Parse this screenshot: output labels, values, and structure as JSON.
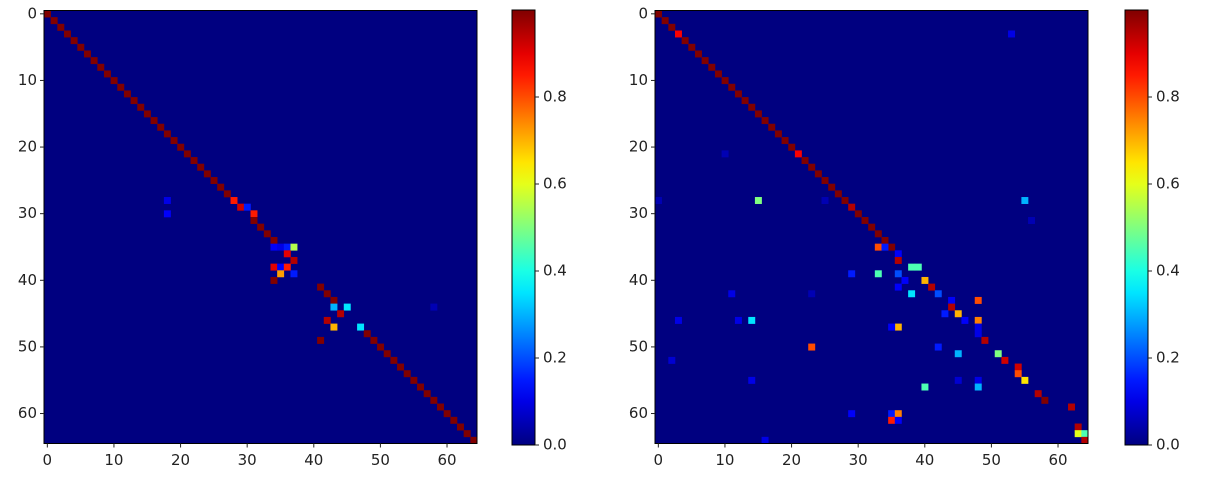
{
  "chart_data": [
    {
      "type": "heatmap",
      "colormap": "jet",
      "xlim": [
        -0.5,
        64.5
      ],
      "ylim": [
        64.5,
        -0.5
      ],
      "xticks": [
        0,
        10,
        20,
        30,
        40,
        50,
        60
      ],
      "yticks": [
        0,
        10,
        20,
        30,
        40,
        50,
        60
      ],
      "clim": [
        0,
        1
      ],
      "cticks": [
        {
          "value": 0,
          "label": "0.0"
        },
        0.2,
        0.4,
        0.6,
        0.8
      ],
      "cells": [
        [
          0,
          0,
          1
        ],
        [
          1,
          1,
          1
        ],
        [
          2,
          2,
          1
        ],
        [
          3,
          3,
          1
        ],
        [
          4,
          4,
          1
        ],
        [
          5,
          5,
          1
        ],
        [
          6,
          6,
          1
        ],
        [
          7,
          7,
          1
        ],
        [
          8,
          8,
          1
        ],
        [
          9,
          9,
          1
        ],
        [
          10,
          10,
          1
        ],
        [
          11,
          11,
          1
        ],
        [
          12,
          12,
          1
        ],
        [
          13,
          13,
          1
        ],
        [
          14,
          14,
          1
        ],
        [
          15,
          15,
          1
        ],
        [
          16,
          16,
          1
        ],
        [
          17,
          17,
          1
        ],
        [
          18,
          18,
          1
        ],
        [
          19,
          19,
          1
        ],
        [
          20,
          20,
          1
        ],
        [
          21,
          21,
          1
        ],
        [
          22,
          22,
          1
        ],
        [
          23,
          23,
          1
        ],
        [
          24,
          24,
          1
        ],
        [
          25,
          25,
          1
        ],
        [
          26,
          26,
          1
        ],
        [
          27,
          27,
          1
        ],
        [
          28,
          28,
          0.85
        ],
        [
          29,
          29,
          0.92
        ],
        [
          30,
          29,
          0.15
        ],
        [
          31,
          30,
          0.85
        ],
        [
          31,
          31,
          1
        ],
        [
          32,
          32,
          1
        ],
        [
          33,
          33,
          1
        ],
        [
          34,
          34,
          1
        ],
        [
          18,
          28,
          0.1
        ],
        [
          18,
          30,
          0.12
        ],
        [
          34,
          35,
          0.12
        ],
        [
          35,
          35,
          0.1
        ],
        [
          36,
          35,
          0.15
        ],
        [
          37,
          35,
          0.55
        ],
        [
          36,
          36,
          0.9
        ],
        [
          37,
          37,
          0.95
        ],
        [
          34,
          38,
          0.9
        ],
        [
          35,
          38,
          0.12
        ],
        [
          35,
          39,
          0.72
        ],
        [
          36,
          38,
          0.85
        ],
        [
          37,
          39,
          0.15
        ],
        [
          34,
          40,
          1
        ],
        [
          41,
          41,
          1
        ],
        [
          42,
          42,
          1
        ],
        [
          43,
          43,
          1
        ],
        [
          43,
          44,
          0.3
        ],
        [
          45,
          44,
          0.35
        ],
        [
          44,
          45,
          0.95
        ],
        [
          42,
          46,
          0.95
        ],
        [
          43,
          47,
          0.7
        ],
        [
          47,
          47,
          0.35
        ],
        [
          48,
          48,
          1
        ],
        [
          41,
          49,
          1
        ],
        [
          58,
          44,
          0.05
        ],
        [
          49,
          49,
          1
        ],
        [
          50,
          50,
          1
        ],
        [
          51,
          51,
          1
        ],
        [
          52,
          52,
          1
        ],
        [
          53,
          53,
          1
        ],
        [
          54,
          54,
          1
        ],
        [
          55,
          55,
          1
        ],
        [
          56,
          56,
          1
        ],
        [
          57,
          57,
          1
        ],
        [
          58,
          58,
          1
        ],
        [
          59,
          59,
          1
        ],
        [
          60,
          60,
          1
        ],
        [
          61,
          61,
          1
        ],
        [
          62,
          62,
          1
        ],
        [
          63,
          63,
          1
        ],
        [
          64,
          64,
          1
        ]
      ]
    },
    {
      "type": "heatmap",
      "colormap": "jet",
      "xlim": [
        -0.5,
        64.5
      ],
      "ylim": [
        64.5,
        -0.5
      ],
      "xticks": [
        0,
        10,
        20,
        30,
        40,
        50,
        60
      ],
      "yticks": [
        0,
        10,
        20,
        30,
        40,
        50,
        60
      ],
      "clim": [
        0,
        1
      ],
      "cticks": [
        {
          "value": 0,
          "label": "0.0"
        },
        0.2,
        0.4,
        0.6,
        0.8
      ],
      "cells": [
        [
          0,
          0,
          1
        ],
        [
          1,
          1,
          1
        ],
        [
          2,
          2,
          1
        ],
        [
          3,
          3,
          0.88
        ],
        [
          4,
          4,
          1
        ],
        [
          5,
          5,
          1
        ],
        [
          6,
          6,
          1
        ],
        [
          7,
          7,
          1
        ],
        [
          8,
          8,
          1
        ],
        [
          9,
          9,
          1
        ],
        [
          10,
          10,
          1
        ],
        [
          11,
          11,
          1
        ],
        [
          12,
          12,
          1
        ],
        [
          13,
          13,
          1
        ],
        [
          14,
          14,
          1
        ],
        [
          15,
          15,
          1
        ],
        [
          16,
          16,
          1
        ],
        [
          17,
          17,
          1
        ],
        [
          18,
          18,
          1
        ],
        [
          19,
          19,
          1
        ],
        [
          20,
          20,
          1
        ],
        [
          21,
          21,
          0.88
        ],
        [
          22,
          22,
          1
        ],
        [
          23,
          23,
          1
        ],
        [
          24,
          24,
          1
        ],
        [
          25,
          25,
          1
        ],
        [
          26,
          26,
          1
        ],
        [
          27,
          27,
          1
        ],
        [
          28,
          28,
          1
        ],
        [
          29,
          29,
          0.95
        ],
        [
          30,
          30,
          1
        ],
        [
          31,
          31,
          1
        ],
        [
          32,
          32,
          1
        ],
        [
          33,
          33,
          1
        ],
        [
          34,
          34,
          1
        ],
        [
          35,
          35,
          1
        ],
        [
          53,
          3,
          0.1
        ],
        [
          10,
          21,
          0.05
        ],
        [
          15,
          28,
          0.5
        ],
        [
          55,
          28,
          0.3
        ],
        [
          0,
          28,
          0.05
        ],
        [
          25,
          28,
          0.05
        ],
        [
          56,
          31,
          0.05
        ],
        [
          33,
          35,
          0.8
        ],
        [
          34,
          35,
          0.15
        ],
        [
          36,
          36,
          0.12
        ],
        [
          36,
          37,
          0.95
        ],
        [
          38,
          38,
          0.45
        ],
        [
          39,
          38,
          0.45
        ],
        [
          29,
          39,
          0.15
        ],
        [
          33,
          39,
          0.45
        ],
        [
          36,
          39,
          0.2
        ],
        [
          37,
          40,
          0.12
        ],
        [
          40,
          40,
          0.7
        ],
        [
          36,
          41,
          0.12
        ],
        [
          41,
          41,
          0.95
        ],
        [
          38,
          42,
          0.35
        ],
        [
          42,
          42,
          0.2
        ],
        [
          11,
          42,
          0.1
        ],
        [
          23,
          42,
          0.05
        ],
        [
          44,
          43,
          0.12
        ],
        [
          48,
          43,
          0.8
        ],
        [
          44,
          44,
          0.95
        ],
        [
          43,
          45,
          0.15
        ],
        [
          45,
          45,
          0.7
        ],
        [
          46,
          46,
          0.12
        ],
        [
          14,
          46,
          0.35
        ],
        [
          3,
          46,
          0.1
        ],
        [
          12,
          46,
          0.1
        ],
        [
          48,
          46,
          0.75
        ],
        [
          36,
          47,
          0.7
        ],
        [
          35,
          47,
          0.12
        ],
        [
          48,
          47,
          0.1
        ],
        [
          48,
          48,
          0.1
        ],
        [
          49,
          49,
          0.95
        ],
        [
          23,
          50,
          0.8
        ],
        [
          42,
          50,
          0.15
        ],
        [
          45,
          51,
          0.3
        ],
        [
          51,
          51,
          0.5
        ],
        [
          52,
          52,
          0.92
        ],
        [
          2,
          52,
          0.08
        ],
        [
          54,
          53,
          0.92
        ],
        [
          54,
          54,
          0.8
        ],
        [
          55,
          55,
          0.65
        ],
        [
          14,
          55,
          0.1
        ],
        [
          45,
          55,
          0.08
        ],
        [
          48,
          55,
          0.1
        ],
        [
          40,
          56,
          0.45
        ],
        [
          48,
          56,
          0.3
        ],
        [
          57,
          57,
          0.95
        ],
        [
          58,
          58,
          1
        ],
        [
          62,
          59,
          0.95
        ],
        [
          29,
          60,
          0.12
        ],
        [
          35,
          60,
          0.15
        ],
        [
          36,
          60,
          0.75
        ],
        [
          35,
          61,
          0.85
        ],
        [
          36,
          61,
          0.12
        ],
        [
          63,
          62,
          0.95
        ],
        [
          63,
          63,
          0.6
        ],
        [
          64,
          63,
          0.45
        ],
        [
          64,
          64,
          0.95
        ],
        [
          16,
          64,
          0.1
        ]
      ]
    }
  ]
}
